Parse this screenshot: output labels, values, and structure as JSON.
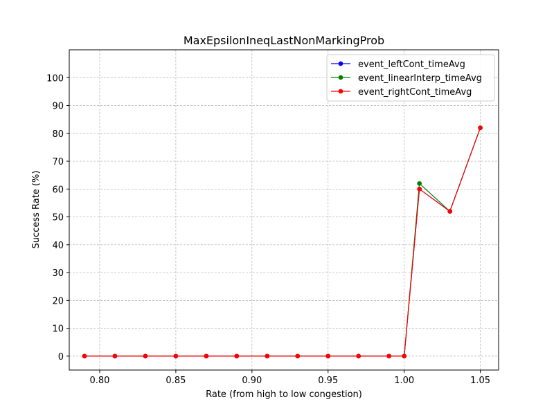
{
  "chart_data": {
    "type": "line",
    "title": "MaxEpsilonIneqLastNonMarkingProb",
    "xlabel": "Rate (from high to low congestion)",
    "ylabel": "Success Rate (%)",
    "xlim": [
      0.78,
      1.062
    ],
    "ylim": [
      -5,
      110
    ],
    "grid": true,
    "legend_position": "top-right",
    "x_ticks": [
      0.8,
      0.85,
      0.9,
      0.95,
      1.0,
      1.05
    ],
    "x_tick_labels": [
      "0.80",
      "0.85",
      "0.90",
      "0.95",
      "1.00",
      "1.05"
    ],
    "y_ticks": [
      0,
      10,
      20,
      30,
      40,
      50,
      60,
      70,
      80,
      90,
      100
    ],
    "y_tick_labels": [
      "0",
      "10",
      "20",
      "30",
      "40",
      "50",
      "60",
      "70",
      "80",
      "90",
      "100"
    ],
    "x": [
      0.79,
      0.81,
      0.83,
      0.85,
      0.87,
      0.89,
      0.91,
      0.93,
      0.95,
      0.97,
      0.99,
      1.0,
      1.01,
      1.03,
      1.05
    ],
    "series": [
      {
        "name": "event_leftCont_timeAvg",
        "color": "#0000ff",
        "values": [
          0,
          0,
          0,
          0,
          0,
          0,
          0,
          0,
          0,
          0,
          0,
          0,
          60,
          52,
          82
        ]
      },
      {
        "name": "event_linearInterp_timeAvg",
        "color": "#008000",
        "values": [
          0,
          0,
          0,
          0,
          0,
          0,
          0,
          0,
          0,
          0,
          0,
          0,
          62,
          52,
          82
        ]
      },
      {
        "name": "event_rightCont_timeAvg",
        "color": "#ff0000",
        "values": [
          0,
          0,
          0,
          0,
          0,
          0,
          0,
          0,
          0,
          0,
          0,
          0,
          60,
          52,
          82
        ]
      }
    ]
  }
}
